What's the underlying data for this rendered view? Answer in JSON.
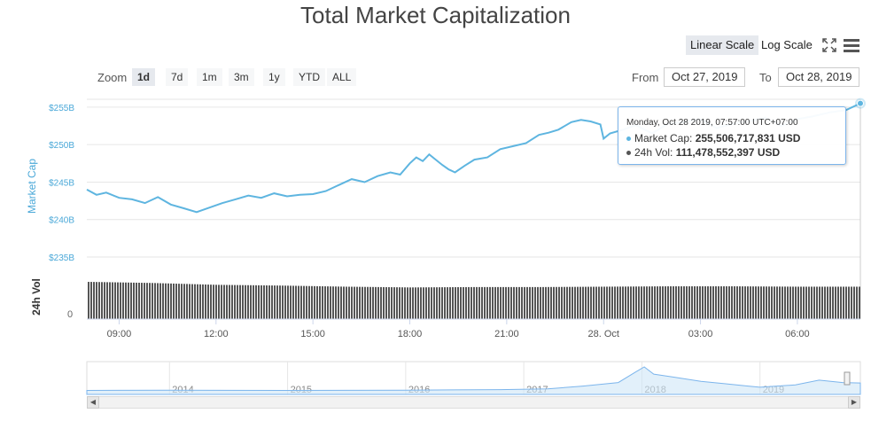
{
  "title": "Total Market Capitalization",
  "scale_buttons": [
    {
      "label": "Linear Scale",
      "active": true
    },
    {
      "label": "Log Scale",
      "active": false
    }
  ],
  "icons": [
    "fullscreen-icon",
    "menu-icon"
  ],
  "zoom": {
    "label": "Zoom",
    "buttons": [
      {
        "label": "1d",
        "active": true
      },
      {
        "label": "7d",
        "active": false
      },
      {
        "label": "1m",
        "active": false
      },
      {
        "label": "3m",
        "active": false
      },
      {
        "label": "1y",
        "active": false
      },
      {
        "label": "YTD",
        "active": false
      },
      {
        "label": "ALL",
        "active": false
      }
    ]
  },
  "range": {
    "from_label": "From",
    "from_value": "Oct 27, 2019",
    "to_label": "To",
    "to_value": "Oct 28, 2019"
  },
  "tooltip": {
    "date": "Monday, Oct 28 2019, 07:57:00 UTC+07:00",
    "market_cap_label": "Market Cap:",
    "market_cap_value": "255,506,717,831 USD",
    "vol_label": "24h Vol:",
    "vol_value": "111,478,552,397 USD"
  },
  "colors": {
    "market_cap": "#5eb5e0",
    "volume": "#555555",
    "nav_fill": "#cfe6f6",
    "axis_label": "#4aa8d8"
  },
  "chart_data": {
    "type": "line",
    "title": "Total Market Capitalization",
    "xlabel": "",
    "ylabel": "Market Cap",
    "y2label": "24h Vol",
    "y_ticks": [
      "$235B",
      "$240B",
      "$245B",
      "$250B",
      "$255B"
    ],
    "y_tick_values": [
      235,
      240,
      245,
      250,
      255
    ],
    "ylim": [
      235,
      257
    ],
    "vol_tick": "0",
    "x_ticks": [
      "09:00",
      "12:00",
      "15:00",
      "18:00",
      "21:00",
      "28. Oct",
      "03:00",
      "06:00"
    ],
    "x_tick_hours": [
      9,
      12,
      15,
      18,
      21,
      24,
      27,
      30
    ],
    "xlim_hours": [
      8.0,
      31.95
    ],
    "grid": true,
    "series": [
      {
        "name": "Market Cap",
        "unit": "billion USD",
        "x_hours": [
          8.0,
          8.3,
          8.6,
          9.0,
          9.4,
          9.8,
          10.2,
          10.6,
          11.0,
          11.4,
          11.8,
          12.2,
          12.6,
          13.0,
          13.4,
          13.8,
          14.2,
          14.6,
          15.0,
          15.4,
          15.8,
          16.2,
          16.6,
          17.0,
          17.4,
          17.7,
          18.0,
          18.2,
          18.4,
          18.6,
          18.8,
          19.0,
          19.2,
          19.4,
          19.7,
          20.0,
          20.4,
          20.8,
          21.2,
          21.6,
          22.0,
          22.3,
          22.6,
          23.0,
          23.3,
          23.6,
          23.9,
          24.0,
          24.2,
          24.6,
          25.0,
          25.5,
          26.0,
          26.5,
          27.0,
          27.5,
          28.0,
          28.5,
          29.0,
          29.5,
          30.0,
          30.5,
          31.0,
          31.5,
          31.95
        ],
        "values": [
          244.0,
          243.3,
          243.6,
          242.9,
          242.7,
          242.2,
          243.0,
          242.0,
          241.5,
          241.0,
          241.6,
          242.2,
          242.7,
          243.2,
          242.9,
          243.5,
          243.1,
          243.3,
          243.4,
          243.8,
          244.6,
          245.4,
          245.0,
          245.8,
          246.3,
          246.0,
          247.5,
          248.3,
          247.8,
          248.7,
          248.0,
          247.3,
          246.7,
          246.3,
          247.2,
          248.0,
          248.3,
          249.4,
          249.8,
          250.2,
          251.3,
          251.6,
          252.0,
          253.0,
          253.3,
          253.1,
          252.7,
          250.8,
          251.5,
          252.0,
          252.6,
          251.5,
          252.8,
          253.0,
          253.4,
          252.2,
          252.8,
          253.1,
          253.6,
          252.5,
          253.4,
          253.8,
          254.3,
          254.6,
          255.5
        ]
      },
      {
        "name": "24h Vol",
        "unit": "relative",
        "x_hours": [
          8.0,
          10.0,
          12.0,
          14.0,
          16.0,
          18.0,
          20.0,
          22.0,
          24.0,
          26.0,
          28.0,
          30.0,
          31.95
        ],
        "values": [
          1.0,
          0.97,
          0.92,
          0.9,
          0.87,
          0.85,
          0.86,
          0.86,
          0.87,
          0.88,
          0.88,
          0.87,
          0.87
        ]
      }
    ],
    "navigator": {
      "year_labels": [
        "2014",
        "2015",
        "2016",
        "2017",
        "2018",
        "2019"
      ],
      "year_positions": [
        2014,
        2015,
        2016,
        2017,
        2018,
        2019
      ],
      "x_range": [
        2013.3,
        2019.85
      ],
      "points_x": [
        2013.3,
        2014.0,
        2015.0,
        2016.0,
        2016.8,
        2017.2,
        2017.5,
        2017.8,
        2017.95,
        2018.02,
        2018.1,
        2018.3,
        2018.5,
        2018.7,
        2018.9,
        2019.0,
        2019.3,
        2019.5,
        2019.7,
        2019.85
      ],
      "points_y": [
        0.02,
        0.03,
        0.02,
        0.03,
        0.05,
        0.08,
        0.2,
        0.35,
        0.8,
        1.0,
        0.7,
        0.55,
        0.4,
        0.3,
        0.2,
        0.15,
        0.25,
        0.45,
        0.35,
        0.33
      ]
    }
  }
}
